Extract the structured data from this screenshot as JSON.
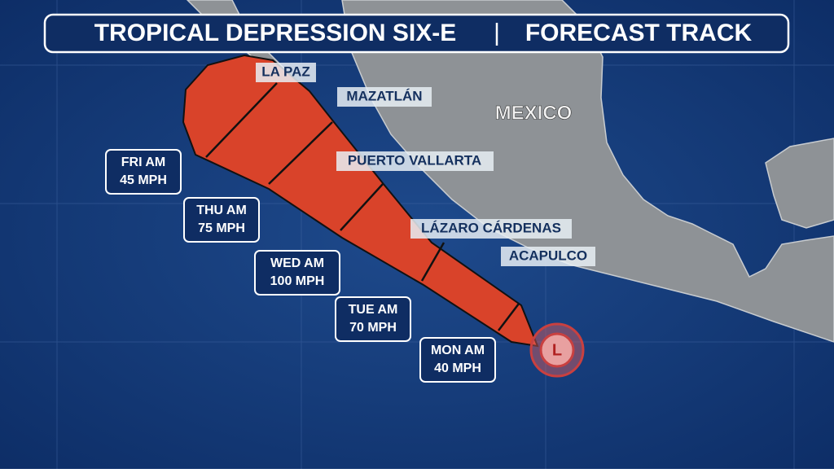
{
  "header": {
    "title": "TROPICAL DEPRESSION SIX-E",
    "subtitle": "FORECAST TRACK"
  },
  "map": {
    "country": "MEXICO",
    "cities": [
      "LA PAZ",
      "MAZATLÁN",
      "PUERTO VALLARTA",
      "LÁZARO CÁRDENAS",
      "ACAPULCO"
    ],
    "storm_symbol": "L",
    "forecast": [
      {
        "time": "MON AM",
        "wind": "40 MPH"
      },
      {
        "time": "TUE AM",
        "wind": "70 MPH"
      },
      {
        "time": "WED AM",
        "wind": "100 MPH"
      },
      {
        "time": "THU AM",
        "wind": "75 MPH"
      },
      {
        "time": "FRI AM",
        "wind": "45 MPH"
      }
    ]
  }
}
